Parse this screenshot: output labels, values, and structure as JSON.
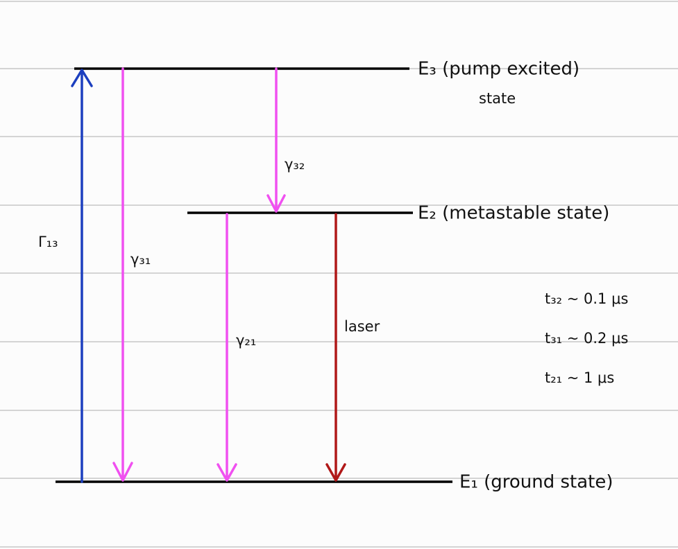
{
  "levels": [
    {
      "label": "E₃ (pump excited)",
      "sublabel": "state"
    },
    {
      "label": "E₂ (metastable state)"
    },
    {
      "label": "E₁ (ground state)"
    }
  ],
  "transitions": [
    {
      "label": "Γ₁₃"
    },
    {
      "label": "γ₃₁"
    },
    {
      "label": "γ₃₂"
    },
    {
      "label": "γ₂₁"
    },
    {
      "label": "laser"
    }
  ],
  "notes": [
    "t₃₂ ~ 0.1 μs",
    "t₃₁ ~ 0.2 μs",
    "t₂₁ ~ 1 μs"
  ]
}
